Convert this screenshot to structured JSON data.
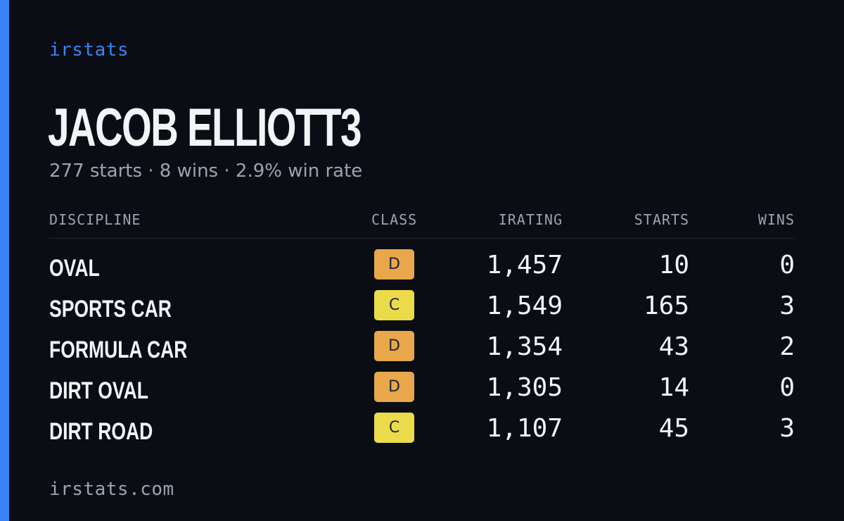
{
  "brand": "irstats",
  "driver": {
    "name": "JACOB ELLIOTT3",
    "summary": "277 starts · 8 wins · 2.9% win rate"
  },
  "table": {
    "headers": {
      "discipline": "DISCIPLINE",
      "class": "CLASS",
      "irating": "IRATING",
      "starts": "STARTS",
      "wins": "WINS"
    },
    "rows": [
      {
        "discipline": "OVAL",
        "class": "D",
        "irating": "1,457",
        "starts": "10",
        "wins": "0"
      },
      {
        "discipline": "SPORTS CAR",
        "class": "C",
        "irating": "1,549",
        "starts": "165",
        "wins": "3"
      },
      {
        "discipline": "FORMULA CAR",
        "class": "D",
        "irating": "1,354",
        "starts": "43",
        "wins": "2"
      },
      {
        "discipline": "DIRT OVAL",
        "class": "D",
        "irating": "1,305",
        "starts": "14",
        "wins": "0"
      },
      {
        "discipline": "DIRT ROAD",
        "class": "C",
        "irating": "1,107",
        "starts": "45",
        "wins": "3"
      }
    ]
  },
  "footer": "irstats.com",
  "colors": {
    "accent": "#3b82f6",
    "background": "#0a0d14",
    "class_d": "#e8a74a",
    "class_c": "#ebdb4b"
  }
}
